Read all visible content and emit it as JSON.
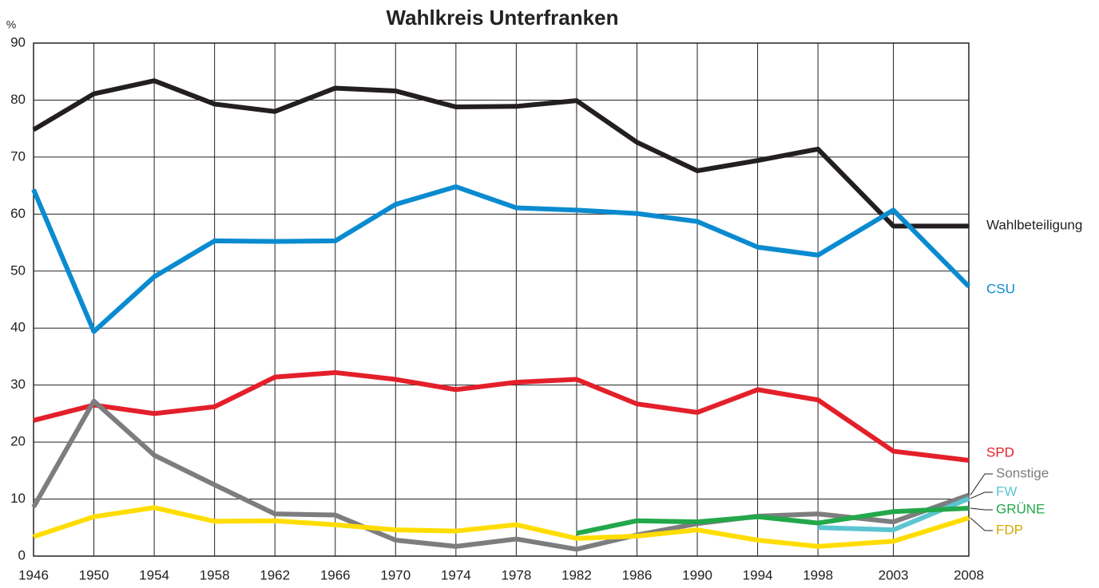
{
  "chart_data": {
    "type": "line",
    "title": "Wahlkreis Unterfranken",
    "y_label": "%",
    "x": [
      1946,
      1950,
      1954,
      1958,
      1962,
      1966,
      1970,
      1974,
      1978,
      1982,
      1986,
      1990,
      1994,
      1998,
      2003,
      2008
    ],
    "xlim": [
      1946,
      2008
    ],
    "xticks": [
      1946,
      1950,
      1954,
      1958,
      1962,
      1966,
      1970,
      1974,
      1978,
      1982,
      1986,
      1990,
      1994,
      1998,
      2003,
      2008
    ],
    "ylim": [
      0,
      90
    ],
    "yticks": [
      0,
      10,
      20,
      30,
      40,
      50,
      60,
      70,
      80,
      90
    ],
    "grid": true,
    "series": [
      {
        "name": "Wahlbeteiligung",
        "color": "#231f20",
        "values": [
          74.8,
          81.1,
          83.4,
          79.3,
          78.0,
          82.1,
          81.6,
          78.8,
          78.9,
          79.9,
          72.6,
          67.6,
          69.4,
          71.4,
          57.9,
          57.9
        ]
      },
      {
        "name": "CSU",
        "color": "#0a8bd0",
        "values": [
          64.3,
          39.4,
          49.0,
          55.3,
          55.2,
          55.3,
          61.7,
          64.8,
          61.1,
          60.7,
          60.1,
          58.7,
          54.2,
          52.8,
          60.7,
          47.3
        ]
      },
      {
        "name": "SPD",
        "color": "#e3202a",
        "values": [
          23.8,
          26.5,
          25.0,
          26.2,
          31.4,
          32.2,
          31.0,
          29.2,
          30.5,
          31.0,
          26.7,
          25.2,
          29.2,
          27.4,
          18.4,
          16.8
        ]
      },
      {
        "name": "Sonstige",
        "color": "#7d7d80",
        "values": [
          8.6,
          27.2,
          17.7,
          12.5,
          7.4,
          7.2,
          2.8,
          1.7,
          3.0,
          1.2,
          3.7,
          5.7,
          7.0,
          7.4,
          6.0,
          10.7
        ]
      },
      {
        "name": "FW",
        "color": "#5bc5d0",
        "values": [
          null,
          null,
          null,
          null,
          null,
          null,
          null,
          null,
          null,
          null,
          null,
          null,
          null,
          5.0,
          4.6,
          10.1
        ]
      },
      {
        "name": "GRÜNE",
        "color": "#22a84a",
        "values": [
          null,
          null,
          null,
          null,
          null,
          null,
          null,
          null,
          null,
          4.0,
          6.2,
          6.0,
          6.9,
          5.8,
          7.8,
          8.4
        ]
      },
      {
        "name": "FDP",
        "color": "#ffdd00",
        "values": [
          3.4,
          6.9,
          8.5,
          6.1,
          6.2,
          5.5,
          4.6,
          4.4,
          5.5,
          3.1,
          3.5,
          4.6,
          2.8,
          1.7,
          2.6,
          6.7
        ]
      }
    ]
  }
}
